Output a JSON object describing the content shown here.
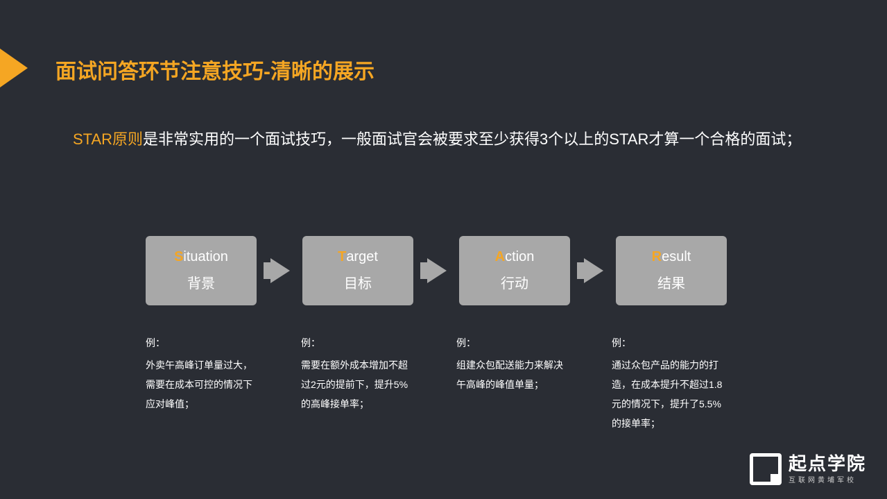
{
  "slide": {
    "title": "面试问答环节注意技巧-清晰的展示",
    "intro_highlight": "STAR原则",
    "intro_rest": "是非常实用的一个面试技巧，一般面试官会被要求至少获得3个以上的STAR才算一个合格的面试；",
    "accent_color": "#f5a623",
    "background_color": "#2a2d34",
    "box_color": "#a8a8a8",
    "text_color": "#ffffff"
  },
  "diagram": {
    "type": "flowchart",
    "boxes": [
      {
        "first": "S",
        "rest": "ituation",
        "cn": "背景"
      },
      {
        "first": "T",
        "rest": "arget",
        "cn": "目标"
      },
      {
        "first": "A",
        "rest": "ction",
        "cn": "行动"
      },
      {
        "first": "R",
        "rest": "esult",
        "cn": "结果"
      }
    ]
  },
  "examples": [
    {
      "label": "例：",
      "text": "外卖午高峰订单量过大，需要在成本可控的情况下应对峰值；"
    },
    {
      "label": "例：",
      "text": "需要在额外成本增加不超过2元的提前下，提升5%的高峰接单率；"
    },
    {
      "label": "例：",
      "text": "组建众包配送能力来解决午高峰的峰值单量；"
    },
    {
      "label": "例：",
      "text": "通过众包产品的能力的打造，在成本提升不超过1.8元的情况下，提升了5.5%的接单率；"
    }
  ],
  "logo": {
    "main": "起点学院",
    "sub": "互联网黄埔军校"
  }
}
